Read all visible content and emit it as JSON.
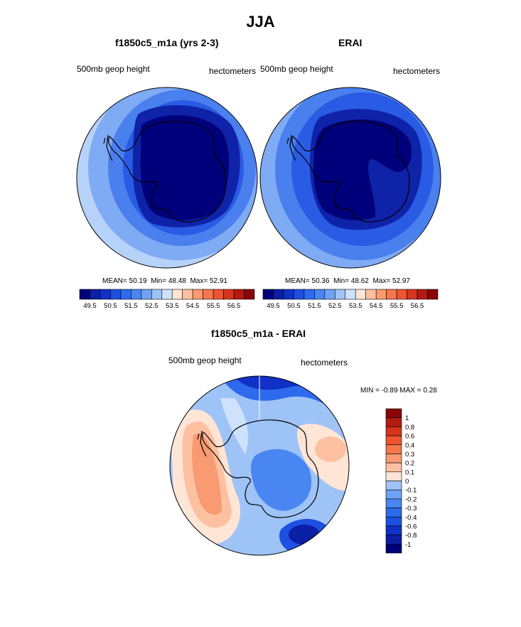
{
  "title": "JJA",
  "colors": {
    "scale": [
      "#00007a",
      "#0b1ea6",
      "#1030c8",
      "#1d4fe0",
      "#2e6aed",
      "#4a86f1",
      "#6fa2f4",
      "#9ec3f7",
      "#cfe2fb",
      "#ffe5d6",
      "#fdc0a0",
      "#f99a72",
      "#f5764d",
      "#ef5330",
      "#d8331e",
      "#b31a12",
      "#8a0606"
    ],
    "coast": "#000000"
  },
  "panels": [
    {
      "id": "model",
      "title": "f1850c5_m1a (yrs 2-3)",
      "left_label": "500mb geop height",
      "right_label": "hectometers",
      "stats": {
        "mean": "50.19",
        "min": "48.48",
        "max": "52.91"
      },
      "colorbar_ticks": [
        "49.5",
        "50.5",
        "51.5",
        "52.5",
        "53.5",
        "54.5",
        "55.5",
        "56.5"
      ]
    },
    {
      "id": "obs",
      "title": "ERAI",
      "left_label": "500mb geop height",
      "right_label": "hectometers",
      "stats": {
        "mean": "50.36",
        "min": "48.62",
        "max": "52.97"
      },
      "colorbar_ticks": [
        "49.5",
        "50.5",
        "51.5",
        "52.5",
        "53.5",
        "54.5",
        "55.5",
        "56.5"
      ]
    }
  ],
  "stat_labels": {
    "mean": "MEAN=",
    "min": "Min=",
    "max": "Max="
  },
  "diff": {
    "title": "f1850c5_m1a - ERAI",
    "left_label": "500mb geop height",
    "right_label": "hectometers",
    "minmax_text": "MIN =  -0.89 MAX =   0.28",
    "colorbar_ticks": [
      "1",
      "0.8",
      "0.6",
      "0.4",
      "0.3",
      "0.2",
      "0.1",
      "0",
      "-0.1",
      "-0.2",
      "-0.3",
      "-0.4",
      "-0.6",
      "-0.8",
      "-1"
    ]
  },
  "chart_data": [
    {
      "type": "heatmap",
      "title": "f1850c5_m1a (yrs 2-3)",
      "variable": "500mb geop height",
      "units": "hectometers",
      "projection": "south polar stereographic",
      "mean": 50.19,
      "min": 48.48,
      "max": 52.91,
      "contour_levels": [
        49.5,
        50.5,
        51.5,
        52.5,
        53.5,
        54.5,
        55.5,
        56.5
      ]
    },
    {
      "type": "heatmap",
      "title": "ERAI",
      "variable": "500mb geop height",
      "units": "hectometers",
      "projection": "south polar stereographic",
      "mean": 50.36,
      "min": 48.62,
      "max": 52.97,
      "contour_levels": [
        49.5,
        50.5,
        51.5,
        52.5,
        53.5,
        54.5,
        55.5,
        56.5
      ]
    },
    {
      "type": "heatmap",
      "title": "f1850c5_m1a - ERAI",
      "variable": "500mb geop height",
      "units": "hectometers",
      "projection": "south polar stereographic",
      "min": -0.89,
      "max": 0.28,
      "contour_levels": [
        -1,
        -0.8,
        -0.6,
        -0.4,
        -0.3,
        -0.2,
        -0.1,
        0,
        0.1,
        0.2,
        0.3,
        0.4,
        0.6,
        0.8,
        1
      ]
    }
  ]
}
